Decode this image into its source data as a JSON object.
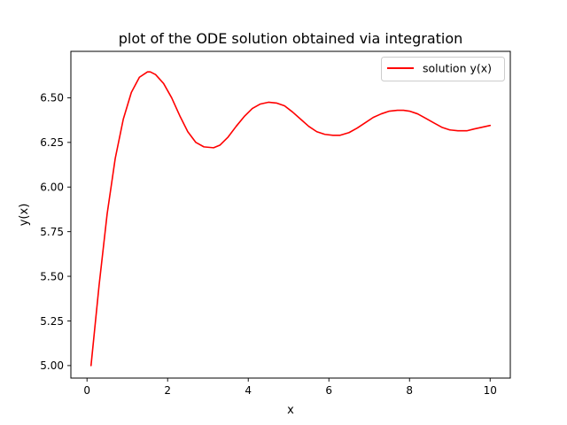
{
  "chart_data": {
    "type": "line",
    "title": "plot of the ODE solution obtained via integration",
    "xlabel": "x",
    "ylabel": "y(x)",
    "xlim": [
      -0.4,
      10.5
    ],
    "ylim": [
      4.93,
      6.76
    ],
    "xticks": [
      0,
      2,
      4,
      6,
      8,
      10
    ],
    "yticks": [
      5.0,
      5.25,
      5.5,
      5.75,
      6.0,
      6.25,
      6.5
    ],
    "xtick_labels": [
      "0",
      "2",
      "4",
      "6",
      "8",
      "10"
    ],
    "ytick_labels": [
      "5.00",
      "5.25",
      "5.50",
      "5.75",
      "6.00",
      "6.25",
      "6.50"
    ],
    "grid": false,
    "legend_position": "top-right",
    "series": [
      {
        "name": "solution y(x)",
        "color": "#ff0000",
        "x": [
          0.1,
          0.3,
          0.5,
          0.7,
          0.9,
          1.1,
          1.3,
          1.5,
          1.57,
          1.7,
          1.9,
          2.1,
          2.3,
          2.5,
          2.7,
          2.9,
          3.14,
          3.3,
          3.5,
          3.7,
          3.9,
          4.1,
          4.3,
          4.5,
          4.71,
          4.9,
          5.1,
          5.3,
          5.5,
          5.7,
          5.9,
          6.1,
          6.28,
          6.5,
          6.7,
          6.9,
          7.1,
          7.3,
          7.5,
          7.7,
          7.85,
          8.0,
          8.2,
          8.4,
          8.6,
          8.8,
          9.0,
          9.2,
          9.42,
          9.6,
          9.8,
          10.0
        ],
        "y": [
          5.0,
          5.45,
          5.85,
          6.16,
          6.38,
          6.53,
          6.615,
          6.645,
          6.645,
          6.63,
          6.58,
          6.5,
          6.4,
          6.31,
          6.25,
          6.225,
          6.22,
          6.235,
          6.28,
          6.34,
          6.395,
          6.44,
          6.465,
          6.475,
          6.47,
          6.455,
          6.42,
          6.38,
          6.34,
          6.31,
          6.295,
          6.29,
          6.29,
          6.305,
          6.33,
          6.36,
          6.39,
          6.41,
          6.425,
          6.43,
          6.43,
          6.425,
          6.41,
          6.385,
          6.36,
          6.335,
          6.32,
          6.315,
          6.315,
          6.325,
          6.335,
          6.345
        ]
      }
    ]
  }
}
